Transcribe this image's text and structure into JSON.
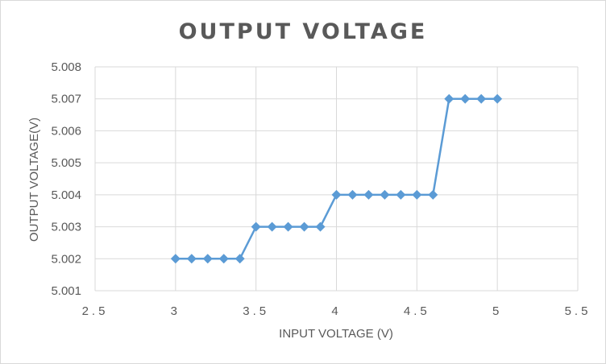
{
  "chart_data": {
    "type": "scatter",
    "title": "OUTPUT VOLTAGE",
    "xlabel": "INPUT VOLTAGE (V)",
    "ylabel": "OUTPUT VOLTAGE(V)",
    "xlim": [
      2.5,
      5.5
    ],
    "ylim": [
      5.001,
      5.008
    ],
    "x_ticks": [
      "2.5",
      "3",
      "3.5",
      "4",
      "4.5",
      "5",
      "5.5"
    ],
    "y_ticks": [
      "5.001",
      "5.002",
      "5.003",
      "5.004",
      "5.005",
      "5.006",
      "5.007",
      "5.008"
    ],
    "grid": true,
    "legend": "none",
    "marker": "diamond",
    "color": "#5b9bd5",
    "series": [
      {
        "x": [
          3.0,
          3.1,
          3.2,
          3.3,
          3.4,
          3.5,
          3.6,
          3.7,
          3.8,
          3.9,
          4.0,
          4.1,
          4.2,
          4.3,
          4.4,
          4.5,
          4.6,
          4.7,
          4.8,
          4.9,
          5.0
        ],
        "y": [
          5.002,
          5.002,
          5.002,
          5.002,
          5.002,
          5.003,
          5.003,
          5.003,
          5.003,
          5.003,
          5.004,
          5.004,
          5.004,
          5.004,
          5.004,
          5.004,
          5.004,
          5.007,
          5.007,
          5.007,
          5.007
        ]
      }
    ]
  }
}
